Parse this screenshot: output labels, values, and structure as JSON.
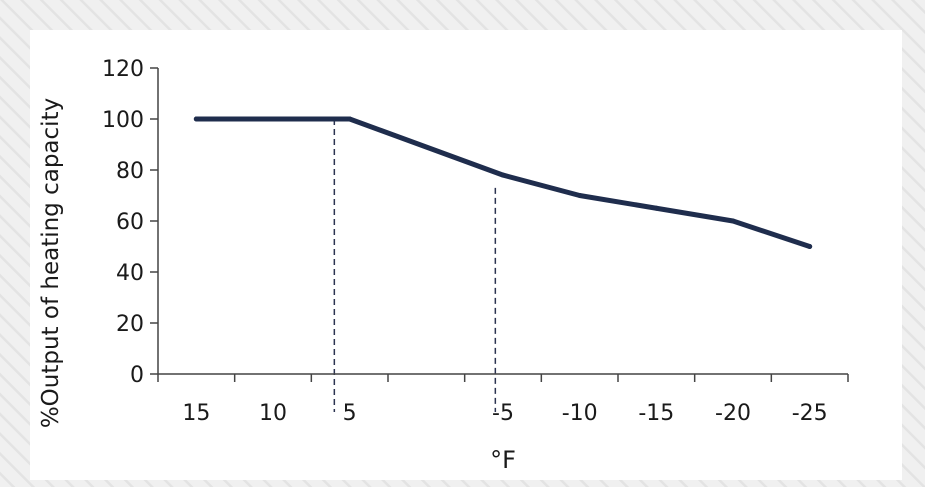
{
  "chart_data": {
    "type": "line",
    "x": [
      15,
      10,
      5,
      0,
      -5,
      -10,
      -15,
      -20,
      -25
    ],
    "x_tick_labels": [
      "15",
      "10",
      "5",
      "-5",
      "-10",
      "-15",
      "-20",
      "-25"
    ],
    "x_tick_values": [
      15,
      10,
      5,
      -5,
      -10,
      -15,
      -20,
      -25
    ],
    "series": [
      {
        "x": [
          15,
          5,
          -5,
          -10,
          -15,
          -20,
          -25
        ],
        "values": [
          100,
          100,
          78,
          70,
          65,
          60,
          50
        ],
        "color": "#1f2d4d"
      }
    ],
    "reference_lines": [
      {
        "x": 6,
        "y_top": 100,
        "style": "dashed"
      },
      {
        "x": -4.5,
        "y_top": 73,
        "style": "dashed"
      }
    ],
    "title": "",
    "xlabel": "°F",
    "ylabel": "%Output of heating capacity",
    "xlim": [
      17.5,
      -27.5
    ],
    "ylim": [
      0,
      120
    ],
    "y_ticks": [
      0,
      20,
      40,
      60,
      80,
      100,
      120
    ],
    "grid": false,
    "legend": "none"
  },
  "colors": {
    "line": "#1f2d4d",
    "axis": "#444444",
    "background": "#f0f0f0",
    "plot_area": "#ffffff",
    "stripe": "#e3e3e3"
  }
}
